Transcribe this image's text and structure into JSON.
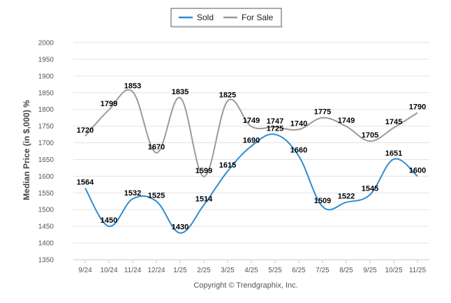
{
  "chart_data": {
    "type": "line",
    "title": "",
    "xlabel": "",
    "ylabel": "Median Price (in $,000) %",
    "categories": [
      "9/24",
      "10/24",
      "11/24",
      "12/24",
      "1/25",
      "2/25",
      "3/25",
      "4/25",
      "5/25",
      "6/25",
      "7/25",
      "8/25",
      "9/25",
      "10/25",
      "11/25"
    ],
    "ylim": [
      1350,
      2000
    ],
    "yticks": [
      1350,
      1400,
      1450,
      1500,
      1550,
      1600,
      1650,
      1700,
      1750,
      1800,
      1850,
      1900,
      1950,
      2000
    ],
    "grid": true,
    "legend": "top-center",
    "series": [
      {
        "name": "Sold",
        "color": "#2f8ccf",
        "values": [
          1564,
          1450,
          1532,
          1525,
          1430,
          1514,
          1615,
          1690,
          1725,
          1660,
          1509,
          1522,
          1545,
          1651,
          1600
        ]
      },
      {
        "name": "For Sale",
        "color": "#9a9a9a",
        "values": [
          1720,
          1799,
          1853,
          1670,
          1835,
          1599,
          1825,
          1749,
          1747,
          1740,
          1775,
          1749,
          1705,
          1745,
          1790
        ]
      }
    ],
    "credit": "Copyright © Trendgraphix, Inc."
  }
}
